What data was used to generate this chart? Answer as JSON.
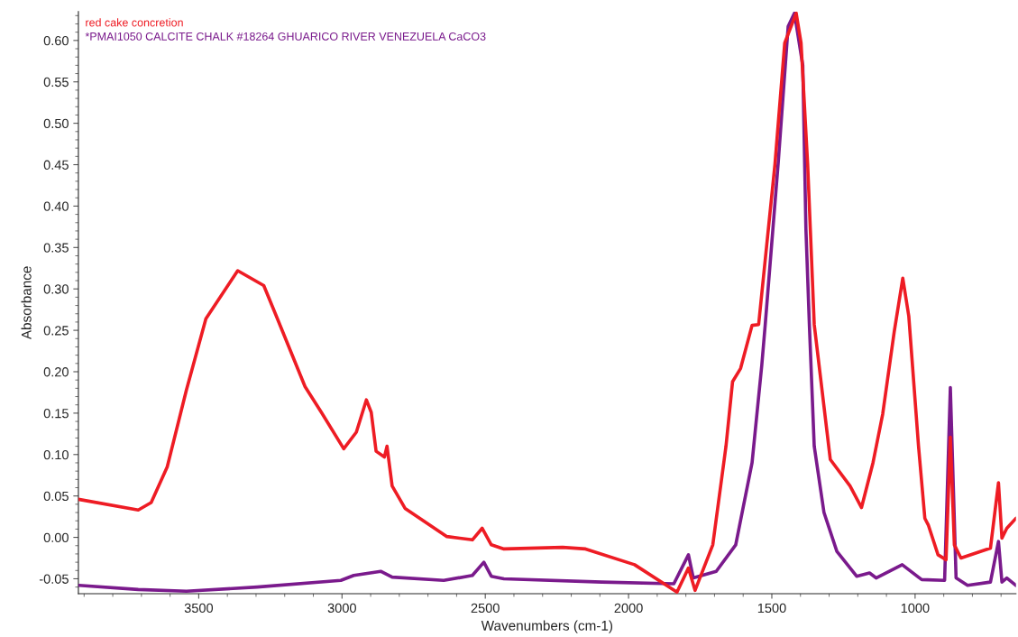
{
  "chart_data": {
    "type": "line",
    "xlabel": "Wavenumbers (cm-1)",
    "ylabel": "Absorbance",
    "xlim": [
      3920,
      648
    ],
    "ylim": [
      -0.068,
      0.635
    ],
    "xticks": [
      3500,
      3000,
      2500,
      2000,
      1500,
      1000
    ],
    "yticks": [
      {
        "value": -0.05,
        "label": "-0.05"
      },
      {
        "value": 0,
        "label": "0.00"
      },
      {
        "value": 0.05,
        "label": "0.05"
      },
      {
        "value": 0.1,
        "label": "0.10"
      },
      {
        "value": 0.15,
        "label": "0.15"
      },
      {
        "value": 0.2,
        "label": "0.20"
      },
      {
        "value": 0.25,
        "label": "0.25"
      },
      {
        "value": 0.3,
        "label": "0.30"
      },
      {
        "value": 0.35,
        "label": "0.35"
      },
      {
        "value": 0.4,
        "label": "0.40"
      },
      {
        "value": 0.45,
        "label": "0.45"
      },
      {
        "value": 0.5,
        "label": "0.50"
      },
      {
        "value": 0.55,
        "label": "0.55"
      },
      {
        "value": 0.6,
        "label": "0.60"
      }
    ],
    "grid": false,
    "legend": "top left",
    "line_style": "solid",
    "marker": "none",
    "series": [
      {
        "name": "red cake concretion",
        "color": "#ee1c24",
        "x": [
          3920,
          3711,
          3666,
          3610,
          3543,
          3475,
          3364,
          3273,
          3229,
          3129,
          3072,
          2994,
          2950,
          2915,
          2898,
          2881,
          2852,
          2843,
          2825,
          2780,
          2634,
          2545,
          2511,
          2479,
          2435,
          2230,
          2150,
          1979,
          1831,
          1791,
          1768,
          1706,
          1660,
          1637,
          1609,
          1569,
          1546,
          1489,
          1455,
          1415,
          1398,
          1375,
          1352,
          1296,
          1227,
          1187,
          1147,
          1113,
          1073,
          1043,
          1022,
          988,
          966,
          954,
          920,
          892,
          877,
          863,
          840,
          737,
          709,
          697,
          680,
          648
        ],
        "values": [
          0.046,
          0.033,
          0.042,
          0.085,
          0.178,
          0.264,
          0.322,
          0.304,
          0.267,
          0.182,
          0.151,
          0.107,
          0.127,
          0.166,
          0.151,
          0.104,
          0.097,
          0.11,
          0.062,
          0.035,
          0.001,
          -0.003,
          0.011,
          -0.009,
          -0.014,
          -0.012,
          -0.014,
          -0.033,
          -0.066,
          -0.037,
          -0.064,
          -0.009,
          0.11,
          0.188,
          0.204,
          0.256,
          0.257,
          0.451,
          0.597,
          0.633,
          0.597,
          0.451,
          0.257,
          0.094,
          0.062,
          0.036,
          0.09,
          0.149,
          0.248,
          0.313,
          0.267,
          0.11,
          0.023,
          0.015,
          -0.021,
          -0.027,
          0.121,
          -0.009,
          -0.025,
          -0.013,
          0.066,
          -0.001,
          0.011,
          0.023
        ]
      },
      {
        "name": "*PMAI1050 CALCITE CHALK #18264 GHUARICO RIVER VENEZUELA CaCO3",
        "color": "#7a1a8c",
        "x": [
          3918,
          3711,
          3543,
          3296,
          3004,
          2959,
          2865,
          2825,
          2645,
          2545,
          2505,
          2479,
          2435,
          2093,
          1842,
          1791,
          1774,
          1694,
          1626,
          1569,
          1535,
          1523,
          1478,
          1443,
          1421,
          1392,
          1381,
          1369,
          1352,
          1318,
          1273,
          1204,
          1159,
          1136,
          1045,
          977,
          897,
          877,
          857,
          817,
          737,
          709,
          697,
          680,
          648
        ],
        "values": [
          -0.058,
          -0.063,
          -0.065,
          -0.06,
          -0.052,
          -0.046,
          -0.041,
          -0.048,
          -0.052,
          -0.046,
          -0.03,
          -0.047,
          -0.05,
          -0.054,
          -0.056,
          -0.021,
          -0.049,
          -0.041,
          -0.009,
          0.09,
          0.208,
          0.257,
          0.451,
          0.617,
          0.633,
          0.57,
          0.372,
          0.257,
          0.11,
          0.03,
          -0.017,
          -0.047,
          -0.043,
          -0.049,
          -0.033,
          -0.051,
          -0.052,
          0.181,
          -0.049,
          -0.058,
          -0.054,
          -0.005,
          -0.054,
          -0.049,
          -0.058
        ]
      }
    ]
  }
}
